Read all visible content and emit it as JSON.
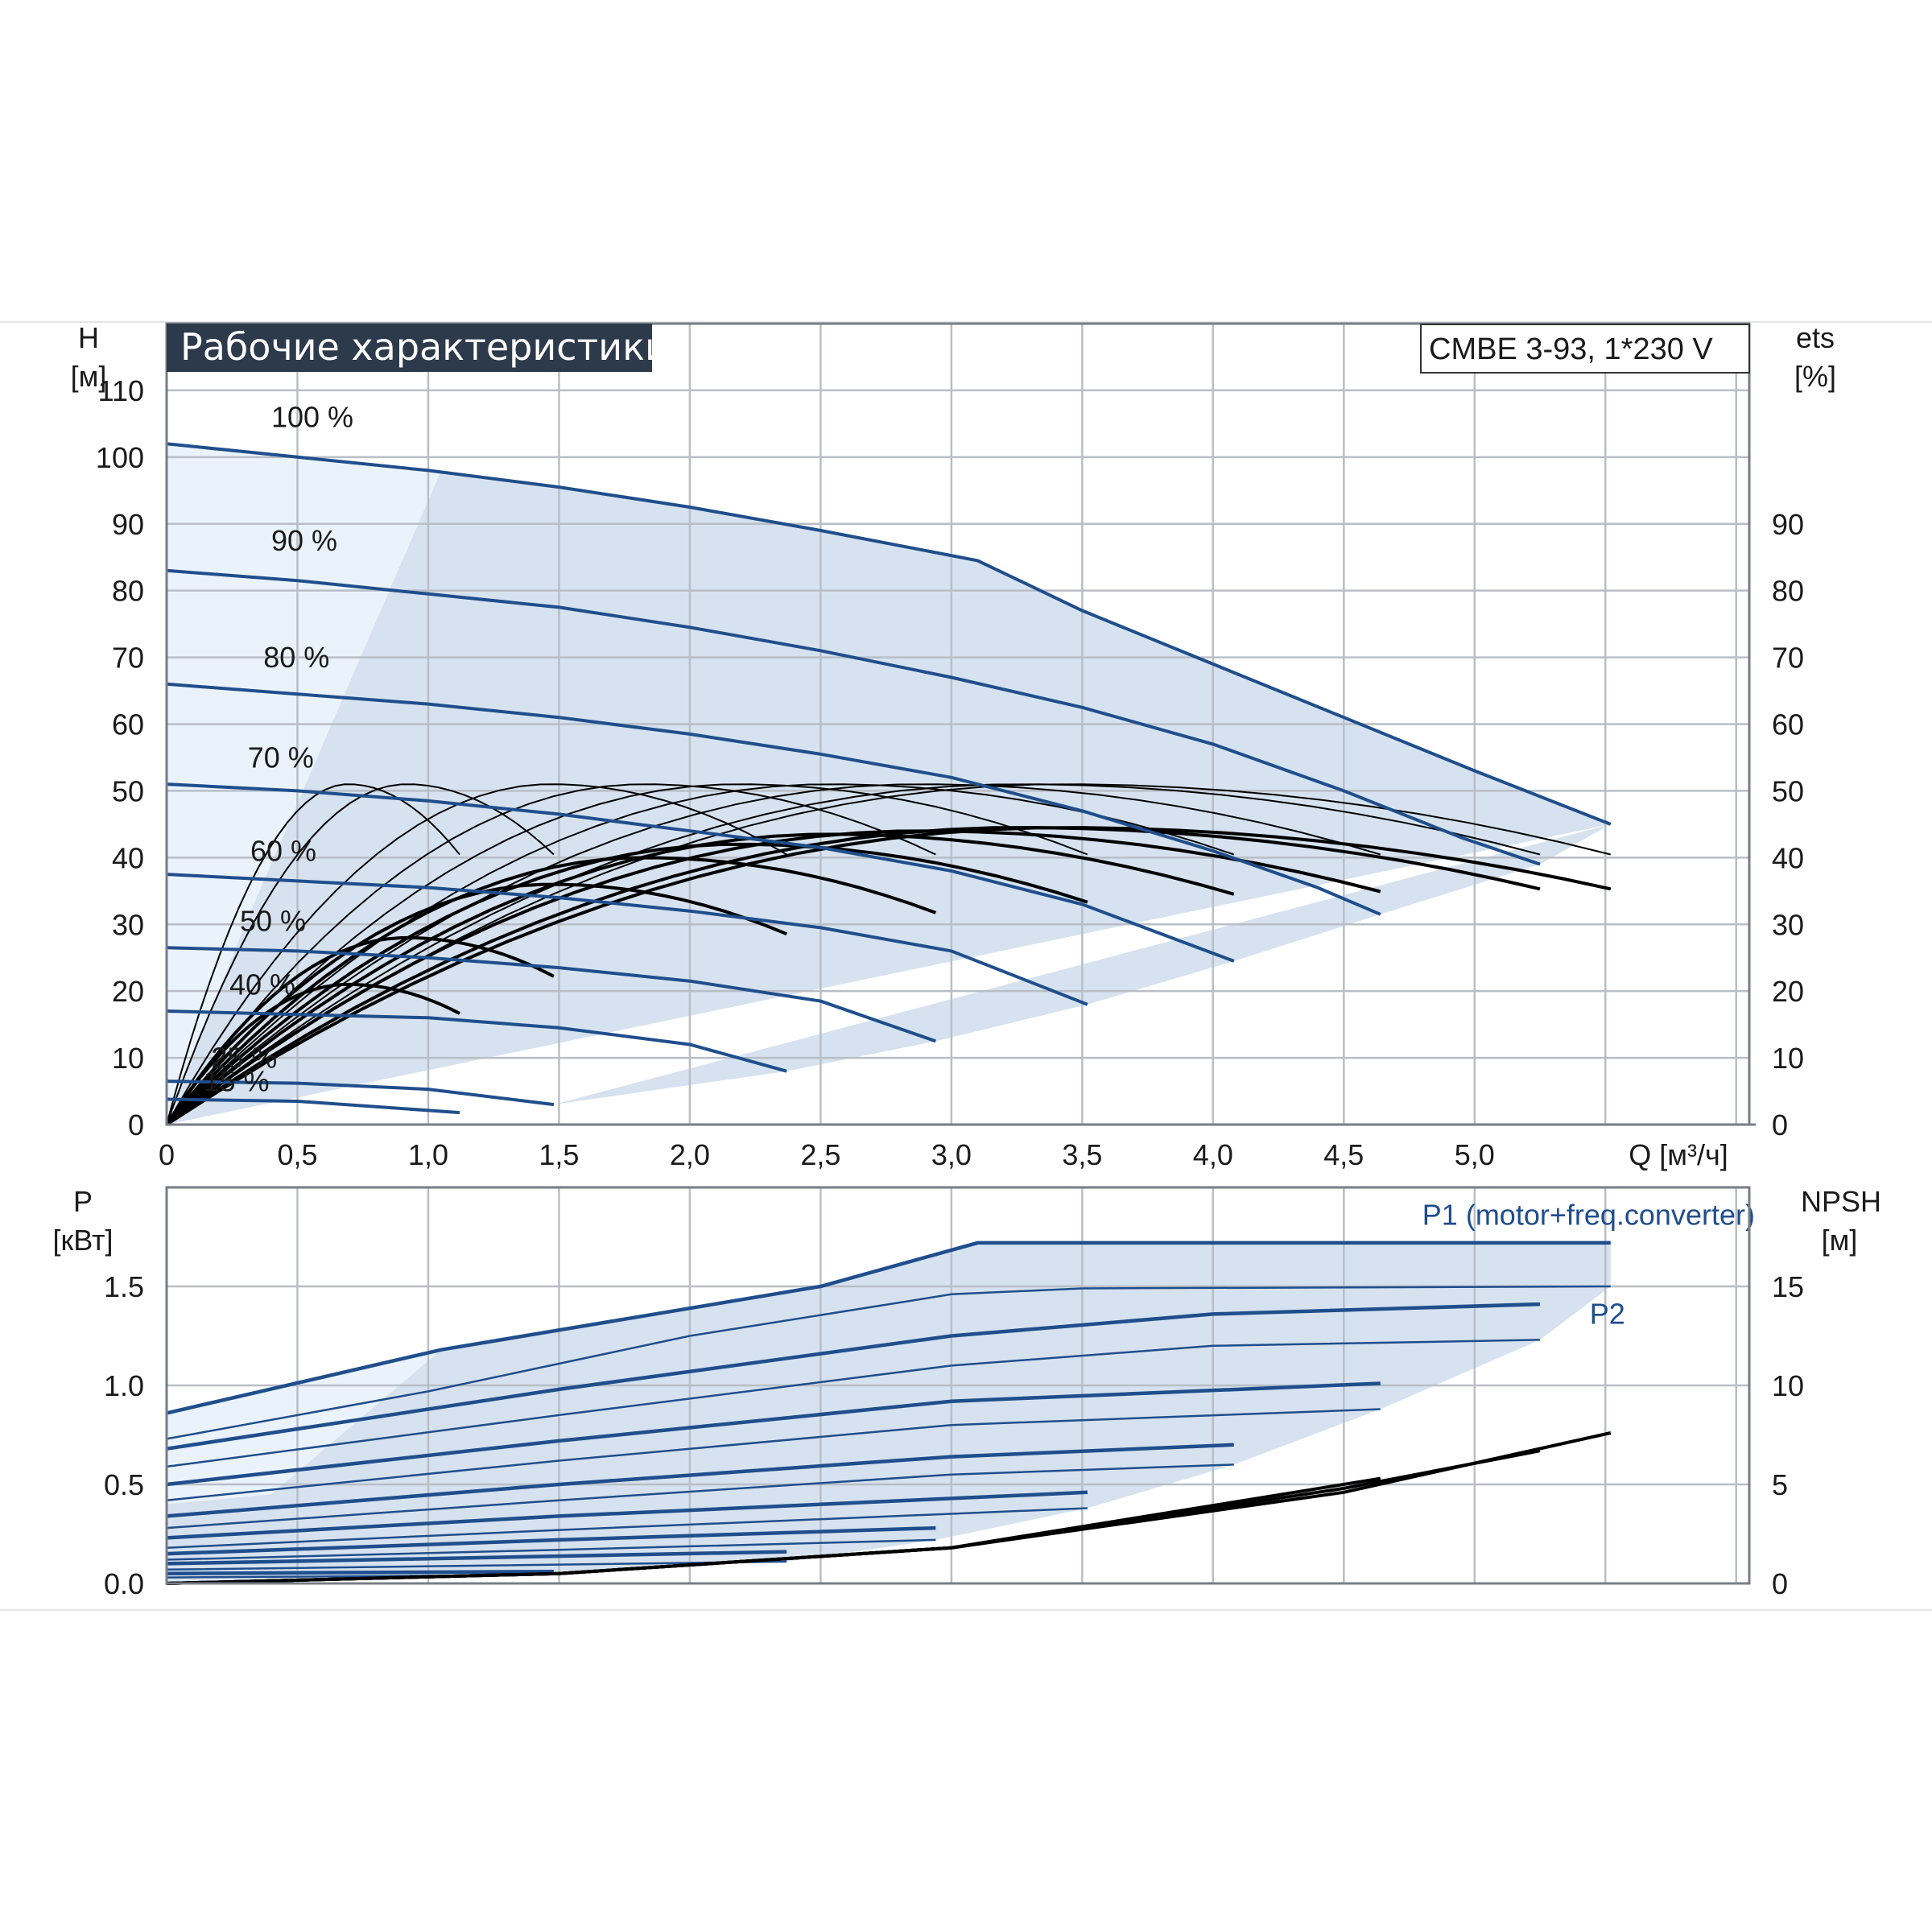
{
  "title": "Рабочие характеристики",
  "model": "CMBE 3-93, 1*230 V",
  "colors": {
    "curve": "#1f4e8c",
    "shade": "#d6e2ef",
    "shade_light": "#eaf2fb",
    "efficiency": "#000000",
    "title_bg": "#2d3a4b"
  },
  "chart_data": [
    {
      "type": "line",
      "name": "head",
      "title": "Рабочие характеристики",
      "xlabel": "Q [м³/ч]",
      "ylabel_left": {
        "name": "H",
        "unit": "[м]"
      },
      "ylabel_right": {
        "name": "ets",
        "unit": "[%]"
      },
      "xlim": [
        0,
        6.05
      ],
      "ylim": [
        0,
        120
      ],
      "x_ticks": [
        "0",
        "0,5",
        "1,0",
        "1,5",
        "2,0",
        "2,5",
        "3,0",
        "3,5",
        "4,0",
        "4,5",
        "5,0"
      ],
      "y_ticks_left": [
        "0",
        "10",
        "20",
        "30",
        "40",
        "50",
        "60",
        "70",
        "80",
        "90",
        "100",
        "110"
      ],
      "y_ticks_right": [
        "0",
        "10",
        "20",
        "30",
        "40",
        "50",
        "60",
        "70",
        "80",
        "90"
      ],
      "grid": true,
      "series": [
        {
          "name": "100 %",
          "points": [
            [
              0,
              102
            ],
            [
              0.5,
              100
            ],
            [
              1.0,
              98
            ],
            [
              1.5,
              95.5
            ],
            [
              2.0,
              92.5
            ],
            [
              2.5,
              89
            ],
            [
              3.1,
              84.5
            ],
            [
              3.5,
              77
            ],
            [
              4.0,
              69
            ],
            [
              4.5,
              61
            ],
            [
              5.0,
              53
            ],
            [
              5.52,
              45
            ]
          ]
        },
        {
          "name": "90 %",
          "points": [
            [
              0,
              83
            ],
            [
              0.5,
              81.5
            ],
            [
              1.0,
              79.5
            ],
            [
              1.5,
              77.5
            ],
            [
              2.0,
              74.5
            ],
            [
              2.5,
              71
            ],
            [
              3.0,
              67
            ],
            [
              3.5,
              62.5
            ],
            [
              4.0,
              57
            ],
            [
              4.5,
              50
            ],
            [
              4.95,
              43
            ],
            [
              5.25,
              39
            ]
          ]
        },
        {
          "name": "80 %",
          "points": [
            [
              0,
              66
            ],
            [
              0.5,
              64.5
            ],
            [
              1.0,
              63
            ],
            [
              1.5,
              61
            ],
            [
              2.0,
              58.5
            ],
            [
              2.5,
              55.5
            ],
            [
              3.0,
              52
            ],
            [
              3.5,
              47
            ],
            [
              4.0,
              41
            ],
            [
              4.4,
              35.5
            ],
            [
              4.64,
              31.5
            ]
          ]
        },
        {
          "name": "70 %",
          "points": [
            [
              0,
              51
            ],
            [
              0.5,
              50
            ],
            [
              1.0,
              48.5
            ],
            [
              1.5,
              46.5
            ],
            [
              2.0,
              44
            ],
            [
              2.5,
              41.5
            ],
            [
              3.0,
              38
            ],
            [
              3.5,
              33
            ],
            [
              4.08,
              24.5
            ]
          ]
        },
        {
          "name": "60 %",
          "points": [
            [
              0,
              37.5
            ],
            [
              0.5,
              36.5
            ],
            [
              1.0,
              35.5
            ],
            [
              1.5,
              34
            ],
            [
              2.0,
              32
            ],
            [
              2.5,
              29.5
            ],
            [
              3.0,
              26
            ],
            [
              3.52,
              18
            ]
          ]
        },
        {
          "name": "50 %",
          "points": [
            [
              0,
              26.5
            ],
            [
              0.5,
              26
            ],
            [
              1.0,
              25
            ],
            [
              1.5,
              23.5
            ],
            [
              2.0,
              21.5
            ],
            [
              2.5,
              18.5
            ],
            [
              2.94,
              12.5
            ]
          ]
        },
        {
          "name": "40 %",
          "points": [
            [
              0,
              17
            ],
            [
              0.5,
              16.5
            ],
            [
              1.0,
              16
            ],
            [
              1.5,
              14.5
            ],
            [
              2.0,
              12
            ],
            [
              2.37,
              8
            ]
          ]
        },
        {
          "name": "25 %",
          "points": [
            [
              0,
              6.5
            ],
            [
              0.5,
              6.2
            ],
            [
              1.0,
              5.3
            ],
            [
              1.48,
              3
            ]
          ]
        },
        {
          "name": "15 %",
          "points": [
            [
              0,
              3.8
            ],
            [
              0.5,
              3.5
            ],
            [
              1.12,
              1.8
            ]
          ]
        }
      ],
      "labels": [
        {
          "text": "100 %",
          "series": "100 %"
        },
        {
          "text": "90 %",
          "series": "90 %"
        },
        {
          "text": "80 %",
          "series": "80 %"
        },
        {
          "text": "70 %",
          "series": "70 %"
        },
        {
          "text": "60 %",
          "series": "60 %"
        },
        {
          "text": "50 %",
          "series": "50 %"
        },
        {
          "text": "40 %",
          "series": "40 %"
        },
        {
          "text": "25 %",
          "series": "25 %"
        },
        {
          "text": "15 %",
          "series": "15 %"
        }
      ],
      "efficiency_curves": [
        {
          "peak": 51,
          "x_end": 1.12
        },
        {
          "peak": 51,
          "x_end": 1.48
        },
        {
          "peak": 51,
          "x_end": 2.37
        },
        {
          "peak": 51,
          "x_end": 2.94
        },
        {
          "peak": 51,
          "x_end": 3.52
        },
        {
          "peak": 51,
          "x_end": 4.08
        },
        {
          "peak": 51,
          "x_end": 4.64
        },
        {
          "peak": 51,
          "x_end": 5.25
        },
        {
          "peak": 51,
          "x_end": 5.52
        },
        {
          "peak": 21,
          "x_end": 1.12
        },
        {
          "peak": 28,
          "x_end": 1.48
        },
        {
          "peak": 36,
          "x_end": 2.37
        },
        {
          "peak": 40,
          "x_end": 2.94
        },
        {
          "peak": 42,
          "x_end": 3.52
        },
        {
          "peak": 43.5,
          "x_end": 4.08
        },
        {
          "peak": 44,
          "x_end": 4.64
        },
        {
          "peak": 44.5,
          "x_end": 5.25
        },
        {
          "peak": 44.5,
          "x_end": 5.52
        }
      ]
    },
    {
      "type": "line",
      "name": "power",
      "ylabel_left": {
        "name": "P",
        "unit": "[кВт]"
      },
      "ylabel_right": {
        "name": "NPSH",
        "unit": "[м]"
      },
      "xlim": [
        0,
        6.05
      ],
      "ylim": [
        0,
        2.0
      ],
      "y_ticks_left": [
        "0.0",
        "0.5",
        "1.0",
        "1.5"
      ],
      "y_ticks_right": [
        "0",
        "5",
        "10",
        "15"
      ],
      "grid": true,
      "series": [
        {
          "name": "P1 (motor+freq.converter)",
          "points": [
            [
              0,
              0.86
            ],
            [
              1.05,
              1.18
            ],
            [
              2.5,
              1.5
            ],
            [
              3.1,
              1.72
            ],
            [
              5.52,
              1.72
            ]
          ]
        },
        {
          "name": "P2",
          "points": [
            [
              0,
              0.73
            ],
            [
              1.0,
              0.97
            ],
            [
              2.0,
              1.25
            ],
            [
              3.0,
              1.46
            ],
            [
              3.5,
              1.49
            ],
            [
              5.52,
              1.5
            ]
          ]
        },
        {
          "name": "",
          "points": [
            [
              0,
              0.68
            ],
            [
              1.5,
              0.98
            ],
            [
              3.0,
              1.25
            ],
            [
              4.0,
              1.36
            ],
            [
              5.25,
              1.41
            ]
          ]
        },
        {
          "name": "",
          "points": [
            [
              0,
              0.59
            ],
            [
              1.5,
              0.85
            ],
            [
              3.0,
              1.1
            ],
            [
              4.0,
              1.2
            ],
            [
              5.25,
              1.23
            ]
          ]
        },
        {
          "name": "",
          "points": [
            [
              0,
              0.5
            ],
            [
              1.5,
              0.72
            ],
            [
              3.0,
              0.92
            ],
            [
              4.64,
              1.01
            ]
          ]
        },
        {
          "name": "",
          "points": [
            [
              0,
              0.42
            ],
            [
              1.5,
              0.62
            ],
            [
              3.0,
              0.8
            ],
            [
              4.64,
              0.88
            ]
          ]
        },
        {
          "name": "",
          "points": [
            [
              0,
              0.34
            ],
            [
              1.5,
              0.5
            ],
            [
              3.0,
              0.64
            ],
            [
              4.08,
              0.7
            ]
          ]
        },
        {
          "name": "",
          "points": [
            [
              0,
              0.28
            ],
            [
              1.5,
              0.42
            ],
            [
              3.0,
              0.55
            ],
            [
              4.08,
              0.6
            ]
          ]
        },
        {
          "name": "",
          "points": [
            [
              0,
              0.23
            ],
            [
              1.5,
              0.34
            ],
            [
              3.52,
              0.46
            ]
          ]
        },
        {
          "name": "",
          "points": [
            [
              0,
              0.18
            ],
            [
              1.5,
              0.27
            ],
            [
              3.52,
              0.38
            ]
          ]
        },
        {
          "name": "",
          "points": [
            [
              0,
              0.15
            ],
            [
              1.5,
              0.22
            ],
            [
              2.94,
              0.28
            ]
          ]
        },
        {
          "name": "",
          "points": [
            [
              0,
              0.12
            ],
            [
              1.5,
              0.17
            ],
            [
              2.94,
              0.22
            ]
          ]
        },
        {
          "name": "",
          "points": [
            [
              0,
              0.1
            ],
            [
              1.2,
              0.13
            ],
            [
              2.37,
              0.16
            ]
          ]
        },
        {
          "name": "",
          "points": [
            [
              0,
              0.07
            ],
            [
              1.2,
              0.09
            ],
            [
              2.37,
              0.11
            ]
          ]
        },
        {
          "name": "",
          "points": [
            [
              0,
              0.05
            ],
            [
              1.48,
              0.06
            ]
          ]
        },
        {
          "name": "",
          "points": [
            [
              0,
              0.03
            ],
            [
              1.12,
              0.04
            ]
          ]
        }
      ],
      "npsh": [
        {
          "points": [
            [
              0,
              0
            ],
            [
              1.5,
              0.5
            ],
            [
              3.0,
              1.8
            ],
            [
              4.08,
              4.1
            ]
          ]
        },
        {
          "points": [
            [
              0,
              0
            ],
            [
              1.5,
              0.5
            ],
            [
              3.0,
              1.8
            ],
            [
              4.64,
              5.3
            ]
          ]
        },
        {
          "points": [
            [
              0,
              0
            ],
            [
              1.5,
              0.5
            ],
            [
              3.0,
              1.8
            ],
            [
              4.5,
              4.8
            ],
            [
              5.25,
              6.7
            ]
          ]
        },
        {
          "points": [
            [
              0,
              0
            ],
            [
              1.5,
              0.5
            ],
            [
              3.0,
              1.8
            ],
            [
              4.5,
              4.6
            ],
            [
              5.52,
              7.6
            ]
          ]
        }
      ],
      "labels": [
        {
          "text": "P1 (motor+freq.converter)",
          "series": "P1 (motor+freq.converter)"
        },
        {
          "text": "P2",
          "series": "P2"
        }
      ]
    }
  ]
}
